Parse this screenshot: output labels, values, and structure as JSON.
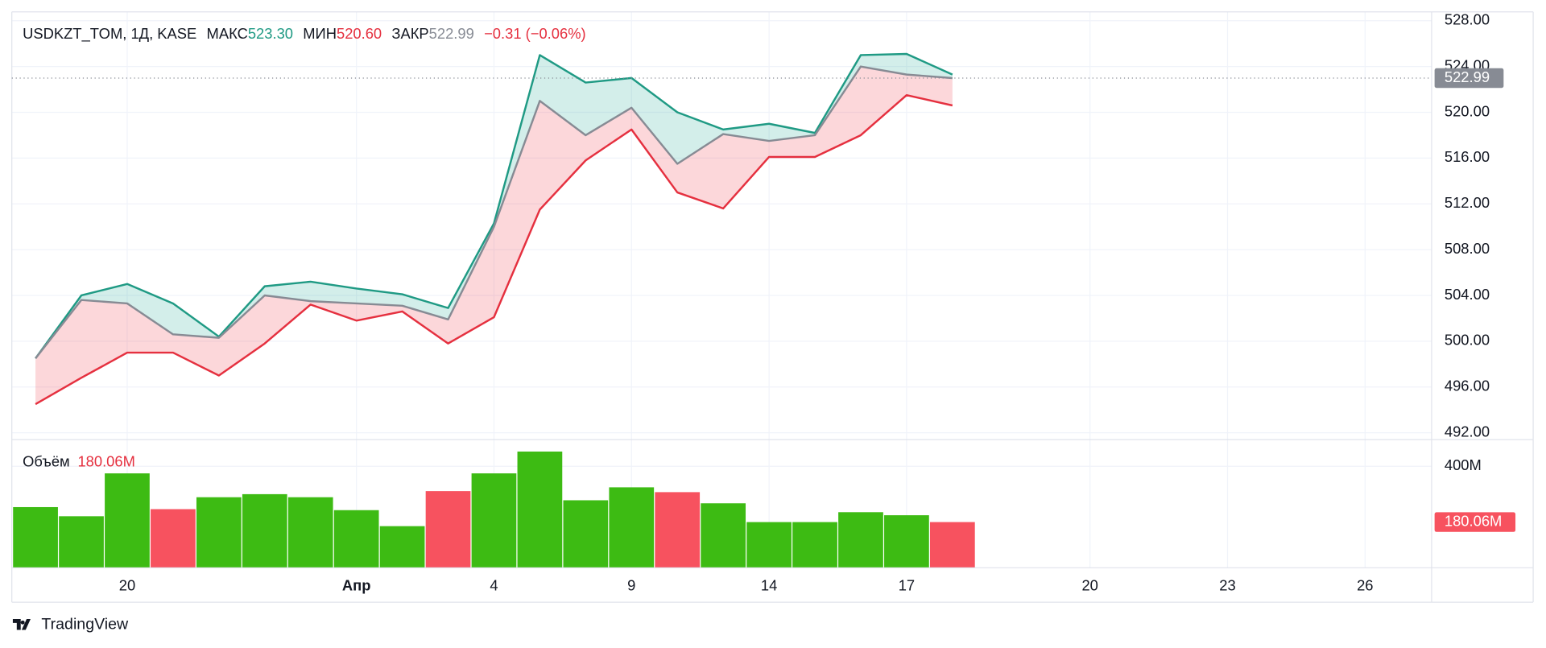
{
  "chart_data": [
    {
      "type": "line",
      "symbol": "USDKZT_TOM, 1Д, KASE",
      "change": "−0.31 (−0.06%)",
      "categories": [
        null,
        null,
        "20",
        null,
        null,
        null,
        null,
        "Апр",
        null,
        null,
        "4",
        null,
        null,
        "9",
        null,
        null,
        "14",
        null,
        null,
        "17",
        null,
        null,
        null,
        "20",
        null,
        null,
        "23",
        null,
        null,
        "26"
      ],
      "series": [
        {
          "name": "МАКС",
          "color": "#1f9a84",
          "last_label": "523.30",
          "values": [
            498.5,
            504.0,
            505.0,
            503.3,
            500.4,
            504.8,
            505.2,
            504.6,
            504.1,
            502.9,
            510.3,
            525.0,
            522.6,
            523.0,
            520.0,
            518.5,
            519.0,
            518.2,
            525.0,
            525.1,
            523.3,
            null,
            null,
            null,
            null,
            null,
            null,
            null,
            null,
            null
          ]
        },
        {
          "name": "МИН",
          "color": "#e5303f",
          "last_label": "520.60",
          "values": [
            494.5,
            496.8,
            499.0,
            499.0,
            497.0,
            499.8,
            503.2,
            501.8,
            502.6,
            499.8,
            502.1,
            511.5,
            515.8,
            518.5,
            513.0,
            511.6,
            516.1,
            516.1,
            518.0,
            521.5,
            520.6,
            null,
            null,
            null,
            null,
            null,
            null,
            null,
            null,
            null
          ]
        },
        {
          "name": "ЗАКР",
          "color": "#878b94",
          "last_label": "522.99",
          "values": [
            498.5,
            503.6,
            503.3,
            500.6,
            500.3,
            504.0,
            503.5,
            503.3,
            503.1,
            501.9,
            510.0,
            521.0,
            518.0,
            520.4,
            515.5,
            518.1,
            517.5,
            518.0,
            524.0,
            523.3,
            522.99,
            null,
            null,
            null,
            null,
            null,
            null,
            null,
            null,
            null
          ]
        }
      ],
      "ylim": [
        491.4,
        528.78
      ],
      "yticks": [
        {
          "value": 528,
          "label": "528.00"
        },
        {
          "value": 524,
          "label": "524.00"
        },
        {
          "value": 520,
          "label": "520.00"
        },
        {
          "value": 516,
          "label": "516.00"
        },
        {
          "value": 512,
          "label": "512.00"
        },
        {
          "value": 508,
          "label": "508.00"
        },
        {
          "value": 504,
          "label": "504.00"
        },
        {
          "value": 500,
          "label": "500.00"
        },
        {
          "value": 496,
          "label": "496.00"
        },
        {
          "value": 492,
          "label": "492.00"
        }
      ],
      "grid": true
    },
    {
      "type": "bar",
      "title": "Объём",
      "last_label": "180.06M",
      "values": [
        239,
        203,
        372,
        231,
        278,
        290,
        278,
        227,
        164,
        302,
        372,
        458,
        266,
        317,
        298,
        254,
        180,
        180,
        219,
        207,
        180.06,
        null,
        null,
        null,
        null,
        null,
        null,
        null,
        null,
        null
      ],
      "colors": [
        "#3dbb13",
        "#3dbb13",
        "#3dbb13",
        "#f7525f",
        "#3dbb13",
        "#3dbb13",
        "#3dbb13",
        "#3dbb13",
        "#3dbb13",
        "#f7525f",
        "#3dbb13",
        "#3dbb13",
        "#3dbb13",
        "#3dbb13",
        "#f7525f",
        "#3dbb13",
        "#3dbb13",
        "#3dbb13",
        "#3dbb13",
        "#3dbb13",
        "#f7525f",
        null,
        null,
        null,
        null,
        null,
        null,
        null,
        null,
        null
      ],
      "ylim": [
        0,
        505
      ],
      "yticks": [
        {
          "value": 400,
          "label": "400M"
        }
      ],
      "grid": true
    }
  ],
  "brand": "TradingView"
}
